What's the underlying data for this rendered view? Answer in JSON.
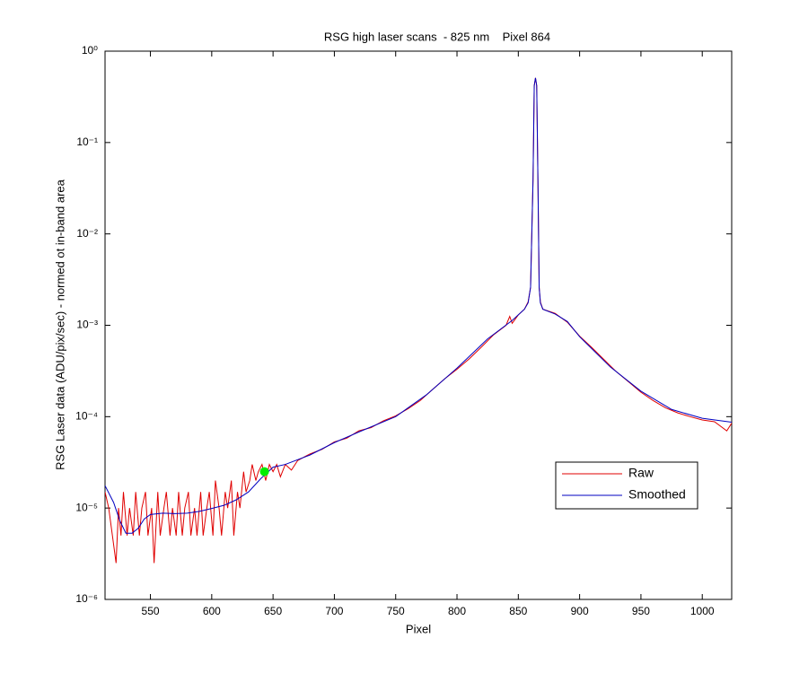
{
  "chart_data": {
    "type": "line",
    "title": "RSG high laser scans  - 825 nm    Pixel 864",
    "xlabel": "Pixel",
    "ylabel": "RSG Laser data (ADU/pix/sec) - normed ot in-band area",
    "xlim": [
      513,
      1024
    ],
    "ylim": [
      1e-06,
      1
    ],
    "yscale": "log",
    "xticks": [
      550,
      600,
      650,
      700,
      750,
      800,
      850,
      900,
      950,
      1000
    ],
    "yticks": [
      {
        "value": 1e-06,
        "label": "10⁻⁶"
      },
      {
        "value": 1e-05,
        "label": "10⁻⁵"
      },
      {
        "value": 0.0001,
        "label": "10⁻⁴"
      },
      {
        "value": 0.001,
        "label": "10⁻³"
      },
      {
        "value": 0.01,
        "label": "10⁻²"
      },
      {
        "value": 0.1,
        "label": "10⁻¹"
      },
      {
        "value": 1,
        "label": "10⁰"
      }
    ],
    "grid": false,
    "legend": "lower right",
    "series": [
      {
        "name": "Raw",
        "color": "#e00000",
        "x": [
          513,
          516,
          519,
          522,
          524,
          526,
          528,
          531,
          533,
          536,
          538,
          541,
          543,
          546,
          548,
          551,
          553,
          556,
          558,
          561,
          563,
          566,
          568,
          571,
          573,
          576,
          578,
          581,
          583,
          586,
          588,
          591,
          593,
          596,
          598,
          601,
          603,
          606,
          608,
          611,
          613,
          616,
          618,
          621,
          623,
          626,
          628,
          631,
          633,
          636,
          638,
          641,
          644,
          647,
          650,
          653,
          656,
          660,
          665,
          670,
          675,
          680,
          690,
          700,
          710,
          720,
          730,
          740,
          750,
          760,
          770,
          780,
          790,
          800,
          810,
          820,
          830,
          840,
          843,
          845,
          850,
          855,
          858,
          860,
          862,
          863,
          864,
          865,
          866,
          867,
          868,
          870,
          880,
          890,
          900,
          910,
          920,
          930,
          940,
          950,
          960,
          970,
          980,
          990,
          1000,
          1010,
          1020,
          1024
        ],
        "values": [
          1.5e-05,
          1e-05,
          5e-06,
          2.5e-06,
          1e-05,
          5e-06,
          1.5e-05,
          5e-06,
          1e-05,
          5e-06,
          1.5e-05,
          5e-06,
          1e-05,
          1.5e-05,
          5e-06,
          1e-05,
          2.5e-06,
          1.5e-05,
          5e-06,
          1e-05,
          1.5e-05,
          5e-06,
          1e-05,
          5e-06,
          1.5e-05,
          5e-06,
          1e-05,
          1.5e-05,
          5e-06,
          1e-05,
          5e-06,
          1.5e-05,
          5e-06,
          1e-05,
          1.5e-05,
          5e-06,
          2e-05,
          1e-05,
          5e-06,
          1.5e-05,
          1e-05,
          2e-05,
          5e-06,
          1.5e-05,
          1e-05,
          2.5e-05,
          1.5e-05,
          2e-05,
          3e-05,
          2e-05,
          2.5e-05,
          3e-05,
          2e-05,
          3e-05,
          2.5e-05,
          3e-05,
          2.2e-05,
          3e-05,
          2.6e-05,
          3.3e-05,
          3.6e-05,
          3.9e-05,
          4.4e-05,
          5.3e-05,
          5.8e-05,
          7e-05,
          7.6e-05,
          9e-05,
          0.000102,
          0.000122,
          0.00015,
          0.000198,
          0.00026,
          0.00033,
          0.00043,
          0.00058,
          0.00079,
          0.001,
          0.00125,
          0.00105,
          0.0013,
          0.0015,
          0.0018,
          0.0026,
          0.039,
          0.42,
          0.51,
          0.42,
          0.039,
          0.0026,
          0.0018,
          0.0015,
          0.00135,
          0.00108,
          0.00076,
          0.00057,
          0.00042,
          0.00031,
          0.00024,
          0.000185,
          0.00015,
          0.000125,
          0.00011,
          0.0001,
          9.2e-05,
          8.8e-05,
          7e-05,
          8.5e-05
        ]
      },
      {
        "name": "Smoothed",
        "color": "#0000c0",
        "x": [
          513,
          520,
          525,
          530,
          535,
          540,
          545,
          550,
          560,
          570,
          580,
          590,
          600,
          610,
          620,
          630,
          640,
          650,
          660,
          680,
          700,
          720,
          750,
          775,
          800,
          825,
          845,
          855,
          858,
          860,
          862,
          863,
          864,
          865,
          866,
          867,
          868,
          870,
          880,
          890,
          900,
          925,
          950,
          975,
          1000,
          1024
        ],
        "values": [
          1.76e-05,
          1.15e-05,
          7.3e-06,
          5.3e-06,
          5.3e-06,
          6e-06,
          7.6e-06,
          8.5e-06,
          8.8e-06,
          8.7e-06,
          8.8e-06,
          9.2e-06,
          9.9e-06,
          1.07e-05,
          1.23e-05,
          1.5e-05,
          2.1e-05,
          2.8e-05,
          3e-05,
          3.8e-05,
          5.2e-05,
          6.8e-05,
          0.0001,
          0.000173,
          0.00034,
          0.00071,
          0.00113,
          0.0015,
          0.00176,
          0.0026,
          0.039,
          0.42,
          0.51,
          0.42,
          0.039,
          0.0026,
          0.00176,
          0.0015,
          0.00133,
          0.0011,
          0.00075,
          0.00035,
          0.00019,
          0.00012,
          9.6e-05,
          8.7e-05
        ]
      }
    ],
    "marker": {
      "x": 643,
      "y": 2.5e-05,
      "color": "#00ee00"
    }
  }
}
